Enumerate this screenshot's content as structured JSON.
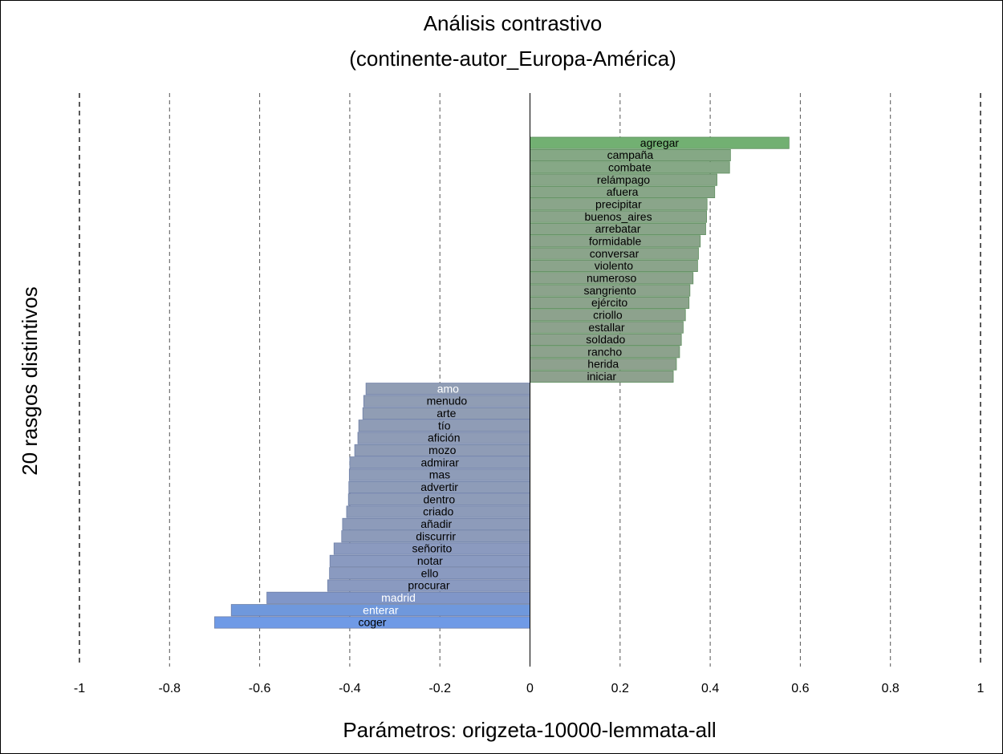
{
  "chart_data": {
    "type": "bar",
    "orientation": "horizontal",
    "title": "Análisis contrastivo",
    "subtitle": "(continente-autor_Europa-América)",
    "xlabel": "Parámetros: origzeta-10000-lemmata-all",
    "ylabel": "20 rasgos distintivos",
    "xlim": [
      -1,
      1
    ],
    "x_ticks": [
      -1,
      -0.8,
      -0.6,
      -0.4,
      -0.2,
      0,
      0.2,
      0.4,
      0.6,
      0.8,
      1
    ],
    "x_tick_labels": [
      "-1",
      "-0.8",
      "-0.6",
      "-0.4",
      "-0.2",
      "0",
      "0.2",
      "0.4",
      "0.6",
      "0.8",
      "1"
    ],
    "grid": "vertical-dashed",
    "categories": [
      "agregar",
      "campaña",
      "combate",
      "relámpago",
      "afuera",
      "precipitar",
      "buenos_aires",
      "arrebatar",
      "formidable",
      "conversar",
      "violento",
      "numeroso",
      "sangriento",
      "ejército",
      "criollo",
      "estallar",
      "soldado",
      "rancho",
      "herida",
      "iniciar",
      "amo",
      "menudo",
      "arte",
      "tío",
      "afición",
      "mozo",
      "admirar",
      "mas",
      "advertir",
      "dentro",
      "criado",
      "añadir",
      "discurrir",
      "señorito",
      "notar",
      "ello",
      "procurar",
      "madrid",
      "enterar",
      "coger"
    ],
    "values": [
      0.575,
      0.445,
      0.443,
      0.415,
      0.41,
      0.393,
      0.392,
      0.39,
      0.378,
      0.374,
      0.372,
      0.362,
      0.355,
      0.353,
      0.345,
      0.34,
      0.336,
      0.332,
      0.325,
      0.318,
      -0.364,
      -0.369,
      -0.371,
      -0.38,
      -0.382,
      -0.389,
      -0.4,
      -0.401,
      -0.402,
      -0.403,
      -0.407,
      -0.416,
      -0.418,
      -0.435,
      -0.444,
      -0.445,
      -0.449,
      -0.584,
      -0.663,
      -0.7
    ],
    "colors": [
      "#72b072",
      "#85a885",
      "#86a886",
      "#88a688",
      "#88a688",
      "#8aa58a",
      "#8aa58a",
      "#8aa58a",
      "#8ba48b",
      "#8ba48b",
      "#8ba48b",
      "#8ca38c",
      "#8ca38c",
      "#8ca38c",
      "#8da28d",
      "#8da28d",
      "#8da28d",
      "#8da28d",
      "#8ea18e",
      "#8ea18e",
      "#909db4",
      "#909db4",
      "#909db4",
      "#8f9cb6",
      "#8f9cb6",
      "#8f9cb6",
      "#8e9cb8",
      "#8e9cb8",
      "#8e9cb8",
      "#8e9cb8",
      "#8d9bb9",
      "#8d9bba",
      "#8d9bba",
      "#8b9abf",
      "#8a9ac0",
      "#8a9ac0",
      "#8a9ac0",
      "#8096c8",
      "#6f98dc",
      "#6f9ae6"
    ],
    "label_colors": [
      "#000",
      "#000",
      "#000",
      "#000",
      "#000",
      "#000",
      "#000",
      "#000",
      "#000",
      "#000",
      "#000",
      "#000",
      "#000",
      "#000",
      "#000",
      "#000",
      "#000",
      "#000",
      "#000",
      "#000",
      "#fff",
      "#000",
      "#000",
      "#000",
      "#000",
      "#000",
      "#000",
      "#000",
      "#000",
      "#000",
      "#000",
      "#000",
      "#000",
      "#000",
      "#000",
      "#000",
      "#000",
      "#fff",
      "#fff",
      "#000"
    ]
  }
}
